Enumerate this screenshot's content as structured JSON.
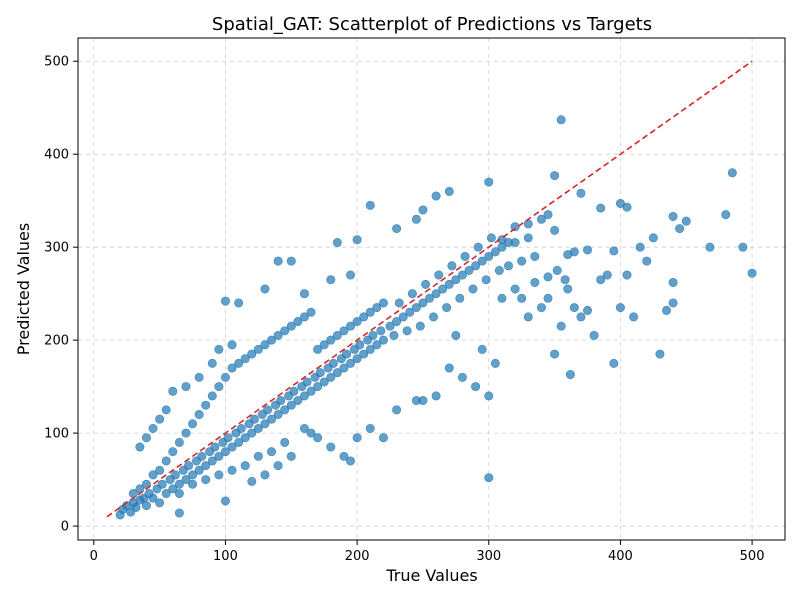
{
  "chart_data": {
    "type": "scatter",
    "title": "Spatial_GAT: Scatterplot of Predictions vs Targets",
    "xlabel": "True Values",
    "ylabel": "Predicted Values",
    "xlim": [
      -12,
      525
    ],
    "ylim": [
      -15,
      525
    ],
    "xticks": [
      0,
      100,
      200,
      300,
      400,
      500
    ],
    "yticks": [
      0,
      100,
      200,
      300,
      400,
      500
    ],
    "grid": true,
    "marker_color": "#1f77b4",
    "reference_line": {
      "x": [
        10,
        500
      ],
      "y": [
        10,
        500
      ],
      "color": "#d62728",
      "style": "dashed"
    },
    "series": [
      {
        "points": [
          [
            20,
            12
          ],
          [
            22,
            18
          ],
          [
            25,
            22
          ],
          [
            28,
            15
          ],
          [
            30,
            25
          ],
          [
            30,
            35
          ],
          [
            32,
            20
          ],
          [
            35,
            28
          ],
          [
            35,
            40
          ],
          [
            38,
            30
          ],
          [
            40,
            22
          ],
          [
            40,
            45
          ],
          [
            42,
            35
          ],
          [
            45,
            30
          ],
          [
            45,
            55
          ],
          [
            48,
            40
          ],
          [
            50,
            25
          ],
          [
            50,
            60
          ],
          [
            52,
            45
          ],
          [
            55,
            35
          ],
          [
            55,
            70
          ],
          [
            58,
            50
          ],
          [
            60,
            40
          ],
          [
            60,
            80
          ],
          [
            62,
            55
          ],
          [
            65,
            45
          ],
          [
            65,
            90
          ],
          [
            68,
            60
          ],
          [
            70,
            50
          ],
          [
            70,
            100
          ],
          [
            72,
            65
          ],
          [
            75,
            55
          ],
          [
            75,
            110
          ],
          [
            78,
            70
          ],
          [
            80,
            60
          ],
          [
            80,
            120
          ],
          [
            82,
            75
          ],
          [
            85,
            65
          ],
          [
            85,
            130
          ],
          [
            88,
            80
          ],
          [
            90,
            70
          ],
          [
            90,
            140
          ],
          [
            92,
            85
          ],
          [
            95,
            75
          ],
          [
            95,
            150
          ],
          [
            98,
            90
          ],
          [
            100,
            80
          ],
          [
            100,
            160
          ],
          [
            102,
            95
          ],
          [
            105,
            85
          ],
          [
            105,
            170
          ],
          [
            108,
            100
          ],
          [
            110,
            90
          ],
          [
            110,
            175
          ],
          [
            112,
            105
          ],
          [
            115,
            95
          ],
          [
            115,
            180
          ],
          [
            118,
            110
          ],
          [
            120,
            100
          ],
          [
            120,
            185
          ],
          [
            122,
            115
          ],
          [
            125,
            105
          ],
          [
            125,
            190
          ],
          [
            128,
            120
          ],
          [
            130,
            110
          ],
          [
            130,
            195
          ],
          [
            132,
            125
          ],
          [
            135,
            115
          ],
          [
            135,
            200
          ],
          [
            138,
            130
          ],
          [
            140,
            120
          ],
          [
            140,
            205
          ],
          [
            142,
            135
          ],
          [
            145,
            125
          ],
          [
            145,
            210
          ],
          [
            148,
            140
          ],
          [
            150,
            130
          ],
          [
            150,
            215
          ],
          [
            152,
            145
          ],
          [
            155,
            135
          ],
          [
            155,
            220
          ],
          [
            158,
            150
          ],
          [
            160,
            140
          ],
          [
            160,
            225
          ],
          [
            162,
            155
          ],
          [
            165,
            145
          ],
          [
            165,
            230
          ],
          [
            168,
            160
          ],
          [
            170,
            150
          ],
          [
            170,
            190
          ],
          [
            172,
            165
          ],
          [
            175,
            155
          ],
          [
            175,
            195
          ],
          [
            178,
            170
          ],
          [
            180,
            160
          ],
          [
            180,
            200
          ],
          [
            182,
            175
          ],
          [
            185,
            165
          ],
          [
            185,
            205
          ],
          [
            188,
            180
          ],
          [
            190,
            170
          ],
          [
            190,
            210
          ],
          [
            192,
            185
          ],
          [
            195,
            175
          ],
          [
            195,
            215
          ],
          [
            198,
            190
          ],
          [
            200,
            180
          ],
          [
            200,
            220
          ],
          [
            202,
            195
          ],
          [
            205,
            185
          ],
          [
            205,
            225
          ],
          [
            208,
            200
          ],
          [
            210,
            190
          ],
          [
            210,
            230
          ],
          [
            212,
            205
          ],
          [
            215,
            195
          ],
          [
            215,
            235
          ],
          [
            218,
            210
          ],
          [
            220,
            200
          ],
          [
            220,
            240
          ],
          [
            225,
            215
          ],
          [
            228,
            205
          ],
          [
            230,
            220
          ],
          [
            232,
            240
          ],
          [
            235,
            225
          ],
          [
            238,
            210
          ],
          [
            240,
            230
          ],
          [
            242,
            250
          ],
          [
            245,
            235
          ],
          [
            248,
            215
          ],
          [
            250,
            240
          ],
          [
            252,
            260
          ],
          [
            255,
            245
          ],
          [
            258,
            225
          ],
          [
            260,
            250
          ],
          [
            262,
            270
          ],
          [
            265,
            255
          ],
          [
            268,
            235
          ],
          [
            270,
            260
          ],
          [
            272,
            280
          ],
          [
            275,
            265
          ],
          [
            278,
            245
          ],
          [
            280,
            270
          ],
          [
            282,
            290
          ],
          [
            285,
            275
          ],
          [
            288,
            255
          ],
          [
            290,
            280
          ],
          [
            292,
            300
          ],
          [
            295,
            285
          ],
          [
            298,
            265
          ],
          [
            300,
            290
          ],
          [
            302,
            310
          ],
          [
            305,
            295
          ],
          [
            308,
            275
          ],
          [
            310,
            300
          ],
          [
            315,
            280
          ],
          [
            320,
            305
          ],
          [
            325,
            285
          ],
          [
            330,
            310
          ],
          [
            335,
            290
          ],
          [
            210,
            345
          ],
          [
            260,
            355
          ],
          [
            270,
            360
          ],
          [
            300,
            370
          ],
          [
            355,
            437
          ],
          [
            350,
            377
          ],
          [
            370,
            358
          ],
          [
            485,
            380
          ],
          [
            400,
            347
          ],
          [
            440,
            333
          ],
          [
            150,
            285
          ],
          [
            185,
            305
          ],
          [
            200,
            308
          ],
          [
            230,
            320
          ],
          [
            245,
            330
          ],
          [
            250,
            340
          ],
          [
            180,
            265
          ],
          [
            195,
            270
          ],
          [
            140,
            285
          ],
          [
            160,
            250
          ],
          [
            100,
            242
          ],
          [
            110,
            240
          ],
          [
            130,
            255
          ],
          [
            90,
            175
          ],
          [
            95,
            190
          ],
          [
            105,
            195
          ],
          [
            80,
            160
          ],
          [
            70,
            150
          ],
          [
            60,
            145
          ],
          [
            55,
            125
          ],
          [
            160,
            105
          ],
          [
            170,
            95
          ],
          [
            180,
            85
          ],
          [
            190,
            75
          ],
          [
            195,
            70
          ],
          [
            200,
            95
          ],
          [
            210,
            105
          ],
          [
            220,
            95
          ],
          [
            230,
            125
          ],
          [
            245,
            135
          ],
          [
            250,
            135
          ],
          [
            260,
            140
          ],
          [
            270,
            170
          ],
          [
            280,
            160
          ],
          [
            290,
            150
          ],
          [
            300,
            140
          ],
          [
            300,
            52
          ],
          [
            305,
            175
          ],
          [
            295,
            190
          ],
          [
            275,
            205
          ],
          [
            310,
            245
          ],
          [
            320,
            255
          ],
          [
            330,
            225
          ],
          [
            340,
            235
          ],
          [
            345,
            245
          ],
          [
            350,
            185
          ],
          [
            355,
            215
          ],
          [
            360,
            255
          ],
          [
            365,
            235
          ],
          [
            370,
            225
          ],
          [
            380,
            205
          ],
          [
            385,
            265
          ],
          [
            390,
            270
          ],
          [
            395,
            175
          ],
          [
            400,
            235
          ],
          [
            405,
            270
          ],
          [
            410,
            225
          ],
          [
            420,
            285
          ],
          [
            425,
            310
          ],
          [
            430,
            185
          ],
          [
            435,
            232
          ],
          [
            440,
            240
          ],
          [
            440,
            262
          ],
          [
            445,
            320
          ],
          [
            450,
            328
          ],
          [
            468,
            300
          ],
          [
            480,
            335
          ],
          [
            493,
            300
          ],
          [
            500,
            272
          ],
          [
            415,
            300
          ],
          [
            330,
            325
          ],
          [
            340,
            330
          ],
          [
            345,
            335
          ],
          [
            350,
            318
          ],
          [
            360,
            292
          ],
          [
            365,
            295
          ],
          [
            375,
            297
          ],
          [
            385,
            342
          ],
          [
            395,
            296
          ],
          [
            405,
            343
          ],
          [
            320,
            322
          ],
          [
            310,
            308
          ],
          [
            315,
            305
          ],
          [
            325,
            245
          ],
          [
            335,
            262
          ],
          [
            345,
            268
          ],
          [
            352,
            275
          ],
          [
            358,
            265
          ],
          [
            362,
            163
          ],
          [
            375,
            232
          ],
          [
            45,
            105
          ],
          [
            50,
            115
          ],
          [
            35,
            85
          ],
          [
            40,
            95
          ],
          [
            65,
            35
          ],
          [
            75,
            45
          ],
          [
            85,
            50
          ],
          [
            95,
            55
          ],
          [
            105,
            60
          ],
          [
            115,
            65
          ],
          [
            125,
            75
          ],
          [
            135,
            80
          ],
          [
            145,
            90
          ],
          [
            65,
            14
          ],
          [
            100,
            27
          ],
          [
            120,
            48
          ],
          [
            130,
            55
          ],
          [
            140,
            65
          ],
          [
            150,
            75
          ],
          [
            165,
            100
          ]
        ]
      }
    ]
  }
}
